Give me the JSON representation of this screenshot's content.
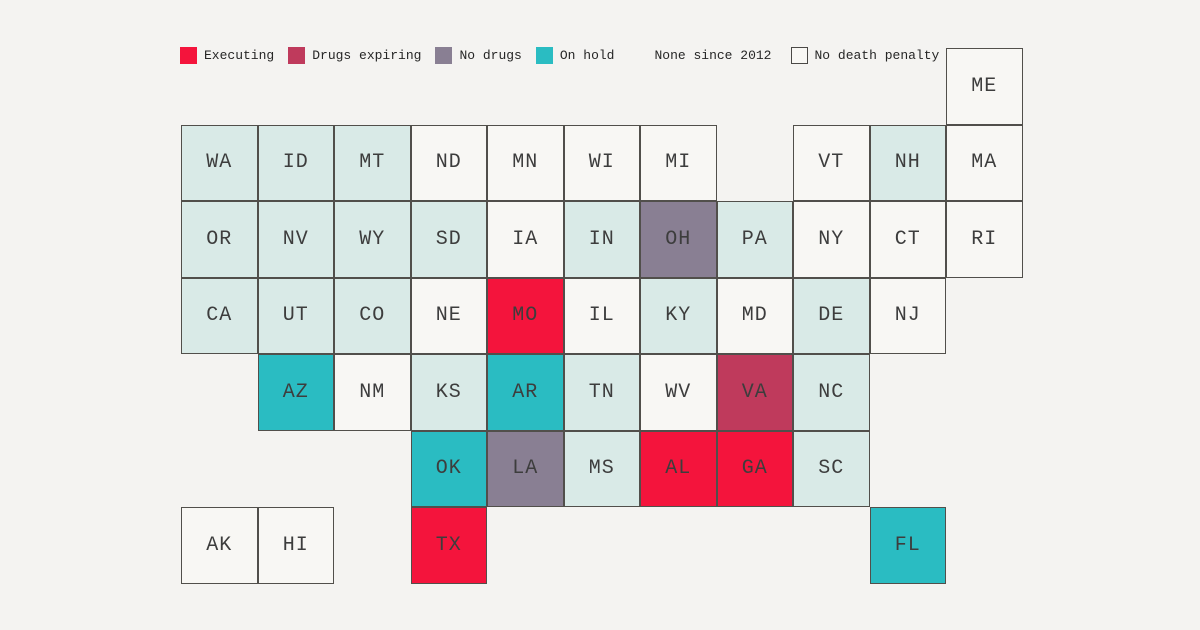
{
  "chart_data": {
    "type": "heatmap",
    "subtype": "us-state-tile-cartogram",
    "title": "",
    "legend": [
      {
        "key": "executing",
        "label": "Executing",
        "swatch": true
      },
      {
        "key": "drugs_expiring",
        "label": "Drugs expiring",
        "swatch": true
      },
      {
        "key": "no_drugs",
        "label": "No drugs",
        "swatch": true
      },
      {
        "key": "on_hold",
        "label": "On hold",
        "swatch": true
      },
      {
        "key": "none_since_2012",
        "label": "None since 2012",
        "swatch": false
      },
      {
        "key": "no_death_penalty",
        "label": "No death penalty",
        "swatch": true
      }
    ],
    "status_colors": {
      "executing": "#f4143c",
      "drugs_expiring": "#bf3a5c",
      "no_drugs": "#897f93",
      "on_hold": "#2abcc2",
      "none_since_2012": "#d9eae7",
      "no_death_penalty": "#f8f7f4"
    },
    "grid": {
      "columns": 11,
      "rows": 7
    },
    "tiles": [
      {
        "state": "ME",
        "row": 0,
        "col": 10,
        "status": "no_death_penalty"
      },
      {
        "state": "WA",
        "row": 1,
        "col": 0,
        "status": "none_since_2012"
      },
      {
        "state": "ID",
        "row": 1,
        "col": 1,
        "status": "none_since_2012"
      },
      {
        "state": "MT",
        "row": 1,
        "col": 2,
        "status": "none_since_2012"
      },
      {
        "state": "ND",
        "row": 1,
        "col": 3,
        "status": "no_death_penalty"
      },
      {
        "state": "MN",
        "row": 1,
        "col": 4,
        "status": "no_death_penalty"
      },
      {
        "state": "WI",
        "row": 1,
        "col": 5,
        "status": "no_death_penalty"
      },
      {
        "state": "MI",
        "row": 1,
        "col": 6,
        "status": "no_death_penalty"
      },
      {
        "state": "VT",
        "row": 1,
        "col": 8,
        "status": "no_death_penalty"
      },
      {
        "state": "NH",
        "row": 1,
        "col": 9,
        "status": "none_since_2012"
      },
      {
        "state": "MA",
        "row": 1,
        "col": 10,
        "status": "no_death_penalty"
      },
      {
        "state": "OR",
        "row": 2,
        "col": 0,
        "status": "none_since_2012"
      },
      {
        "state": "NV",
        "row": 2,
        "col": 1,
        "status": "none_since_2012"
      },
      {
        "state": "WY",
        "row": 2,
        "col": 2,
        "status": "none_since_2012"
      },
      {
        "state": "SD",
        "row": 2,
        "col": 3,
        "status": "none_since_2012"
      },
      {
        "state": "IA",
        "row": 2,
        "col": 4,
        "status": "no_death_penalty"
      },
      {
        "state": "IN",
        "row": 2,
        "col": 5,
        "status": "none_since_2012"
      },
      {
        "state": "OH",
        "row": 2,
        "col": 6,
        "status": "no_drugs"
      },
      {
        "state": "PA",
        "row": 2,
        "col": 7,
        "status": "none_since_2012"
      },
      {
        "state": "NY",
        "row": 2,
        "col": 8,
        "status": "no_death_penalty"
      },
      {
        "state": "CT",
        "row": 2,
        "col": 9,
        "status": "no_death_penalty"
      },
      {
        "state": "RI",
        "row": 2,
        "col": 10,
        "status": "no_death_penalty"
      },
      {
        "state": "CA",
        "row": 3,
        "col": 0,
        "status": "none_since_2012"
      },
      {
        "state": "UT",
        "row": 3,
        "col": 1,
        "status": "none_since_2012"
      },
      {
        "state": "CO",
        "row": 3,
        "col": 2,
        "status": "none_since_2012"
      },
      {
        "state": "NE",
        "row": 3,
        "col": 3,
        "status": "no_death_penalty"
      },
      {
        "state": "MO",
        "row": 3,
        "col": 4,
        "status": "executing"
      },
      {
        "state": "IL",
        "row": 3,
        "col": 5,
        "status": "no_death_penalty"
      },
      {
        "state": "KY",
        "row": 3,
        "col": 6,
        "status": "none_since_2012"
      },
      {
        "state": "MD",
        "row": 3,
        "col": 7,
        "status": "no_death_penalty"
      },
      {
        "state": "DE",
        "row": 3,
        "col": 8,
        "status": "none_since_2012"
      },
      {
        "state": "NJ",
        "row": 3,
        "col": 9,
        "status": "no_death_penalty"
      },
      {
        "state": "AZ",
        "row": 4,
        "col": 1,
        "status": "on_hold"
      },
      {
        "state": "NM",
        "row": 4,
        "col": 2,
        "status": "no_death_penalty"
      },
      {
        "state": "KS",
        "row": 4,
        "col": 3,
        "status": "none_since_2012"
      },
      {
        "state": "AR",
        "row": 4,
        "col": 4,
        "status": "on_hold"
      },
      {
        "state": "TN",
        "row": 4,
        "col": 5,
        "status": "none_since_2012"
      },
      {
        "state": "WV",
        "row": 4,
        "col": 6,
        "status": "no_death_penalty"
      },
      {
        "state": "VA",
        "row": 4,
        "col": 7,
        "status": "drugs_expiring"
      },
      {
        "state": "NC",
        "row": 4,
        "col": 8,
        "status": "none_since_2012"
      },
      {
        "state": "OK",
        "row": 5,
        "col": 3,
        "status": "on_hold"
      },
      {
        "state": "LA",
        "row": 5,
        "col": 4,
        "status": "no_drugs"
      },
      {
        "state": "MS",
        "row": 5,
        "col": 5,
        "status": "none_since_2012"
      },
      {
        "state": "AL",
        "row": 5,
        "col": 6,
        "status": "executing"
      },
      {
        "state": "GA",
        "row": 5,
        "col": 7,
        "status": "executing"
      },
      {
        "state": "SC",
        "row": 5,
        "col": 8,
        "status": "none_since_2012"
      },
      {
        "state": "AK",
        "row": 6,
        "col": 0,
        "status": "no_death_penalty"
      },
      {
        "state": "HI",
        "row": 6,
        "col": 1,
        "status": "no_death_penalty"
      },
      {
        "state": "TX",
        "row": 6,
        "col": 3,
        "status": "executing"
      },
      {
        "state": "FL",
        "row": 6,
        "col": 9,
        "status": "on_hold"
      }
    ]
  }
}
